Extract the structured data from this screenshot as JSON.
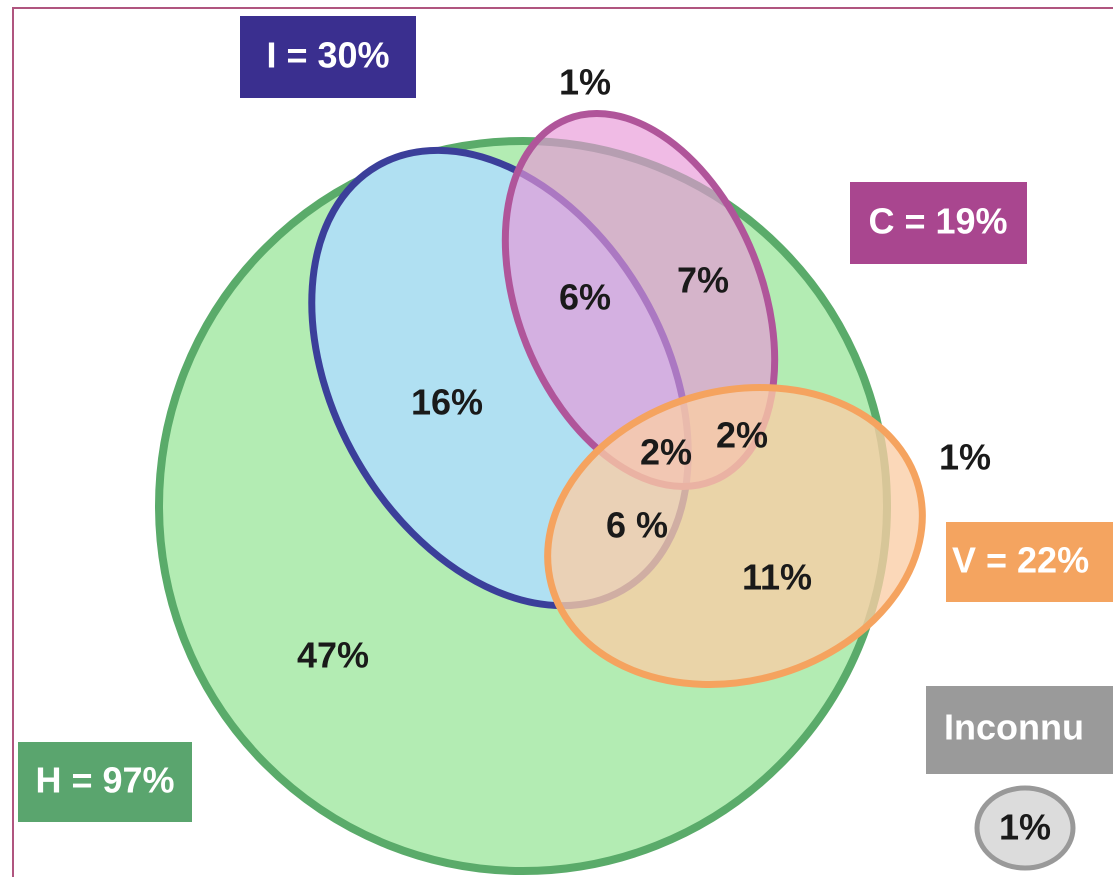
{
  "sets": [
    {
      "label": "H = 97%"
    },
    {
      "label": "I = 30%"
    },
    {
      "label": "C = 19%"
    },
    {
      "label": "V = 22%"
    },
    {
      "label": "Inconnu",
      "value": "1%"
    }
  ],
  "regions": [
    {
      "label": "47%"
    },
    {
      "label": "16%"
    },
    {
      "label": "6%"
    },
    {
      "label": "7%"
    },
    {
      "label": "1%"
    },
    {
      "label": "2%"
    },
    {
      "label": "2%"
    },
    {
      "label": "6 %"
    },
    {
      "label": "11%"
    },
    {
      "label": "1%"
    }
  ]
}
